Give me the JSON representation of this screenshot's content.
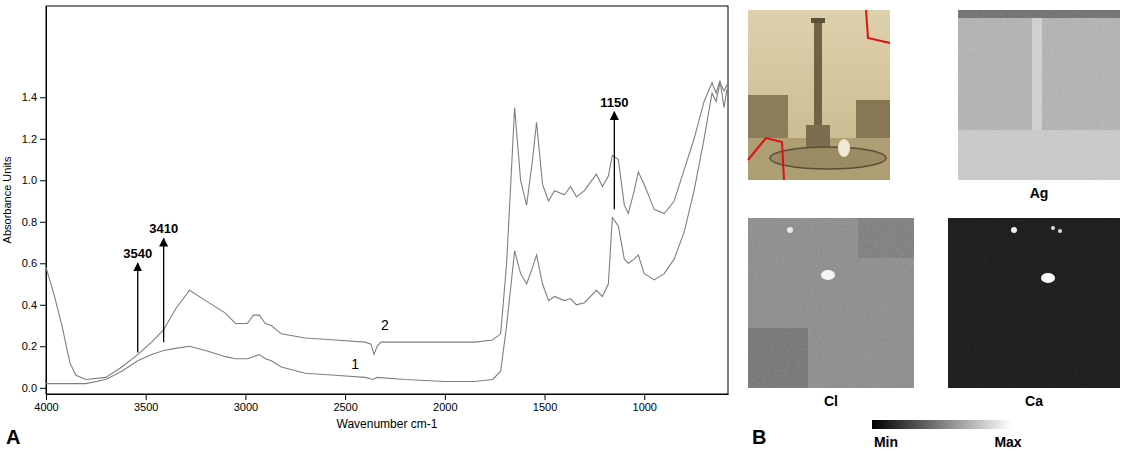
{
  "chart_data": {
    "type": "line",
    "panel": "A",
    "x_label": "Wavenumber cm-1",
    "y_label": "Absorbance Units",
    "xlim": [
      4000,
      580
    ],
    "ylim": [
      -0.03,
      1.84
    ],
    "xticks": [
      4000,
      3500,
      3000,
      2500,
      2000,
      1500,
      1000
    ],
    "yticks": [
      {
        "value": 0,
        "label": "0.0"
      },
      0.2,
      0.4,
      0.6,
      0.8,
      {
        "value": 1,
        "label": "1.0"
      },
      1.2,
      1.4
    ],
    "grid": false,
    "series": [
      {
        "name": "1",
        "color": "#7f7f7f",
        "label_x": 2450,
        "label_y": 0.09,
        "x": [
          4000,
          3900,
          3800,
          3700,
          3620,
          3540,
          3470,
          3410,
          3350,
          3280,
          3200,
          3100,
          3050,
          2990,
          2960,
          2930,
          2900,
          2870,
          2820,
          2700,
          2550,
          2400,
          2360,
          2340,
          2200,
          2000,
          1850,
          1760,
          1720,
          1690,
          1650,
          1620,
          1590,
          1560,
          1540,
          1510,
          1480,
          1450,
          1400,
          1370,
          1340,
          1300,
          1240,
          1210,
          1180,
          1160,
          1130,
          1100,
          1080,
          1050,
          1030,
          1000,
          950,
          900,
          850,
          800,
          750,
          700,
          660,
          640,
          620,
          600,
          585
        ],
        "values": [
          0.02,
          0.02,
          0.02,
          0.04,
          0.08,
          0.13,
          0.16,
          0.18,
          0.19,
          0.2,
          0.18,
          0.15,
          0.14,
          0.14,
          0.15,
          0.16,
          0.14,
          0.13,
          0.1,
          0.07,
          0.06,
          0.05,
          0.04,
          0.05,
          0.04,
          0.03,
          0.03,
          0.04,
          0.08,
          0.3,
          0.66,
          0.55,
          0.5,
          0.58,
          0.64,
          0.5,
          0.42,
          0.44,
          0.42,
          0.43,
          0.4,
          0.41,
          0.47,
          0.44,
          0.5,
          0.82,
          0.78,
          0.62,
          0.6,
          0.62,
          0.64,
          0.55,
          0.52,
          0.55,
          0.62,
          0.75,
          0.95,
          1.2,
          1.42,
          1.38,
          1.47,
          1.43,
          1.46
        ]
      },
      {
        "name": "2",
        "color": "#7f7f7f",
        "label_x": 2300,
        "label_y": 0.28,
        "x": [
          4000,
          3960,
          3920,
          3880,
          3850,
          3800,
          3700,
          3620,
          3540,
          3470,
          3410,
          3350,
          3280,
          3200,
          3100,
          3050,
          2990,
          2960,
          2930,
          2900,
          2870,
          2820,
          2700,
          2550,
          2400,
          2370,
          2355,
          2340,
          2320,
          2200,
          2000,
          1850,
          1760,
          1720,
          1690,
          1650,
          1620,
          1590,
          1560,
          1540,
          1510,
          1480,
          1450,
          1400,
          1370,
          1340,
          1300,
          1240,
          1210,
          1180,
          1160,
          1130,
          1100,
          1080,
          1050,
          1030,
          1000,
          950,
          900,
          850,
          800,
          750,
          700,
          660,
          640,
          620,
          600,
          585
        ],
        "values": [
          0.58,
          0.45,
          0.3,
          0.12,
          0.06,
          0.04,
          0.05,
          0.1,
          0.16,
          0.22,
          0.28,
          0.38,
          0.47,
          0.42,
          0.36,
          0.31,
          0.31,
          0.35,
          0.35,
          0.31,
          0.3,
          0.26,
          0.24,
          0.23,
          0.22,
          0.21,
          0.16,
          0.2,
          0.22,
          0.22,
          0.22,
          0.22,
          0.23,
          0.26,
          0.6,
          1.35,
          1.0,
          0.88,
          1.1,
          1.28,
          0.98,
          0.9,
          0.95,
          0.93,
          0.97,
          0.92,
          0.95,
          1.03,
          0.97,
          1.02,
          1.12,
          1.1,
          0.88,
          0.84,
          0.95,
          1.04,
          0.98,
          0.86,
          0.84,
          0.9,
          1.05,
          1.2,
          1.38,
          1.47,
          1.42,
          1.48,
          1.35,
          1.44
        ]
      }
    ],
    "annotations": [
      {
        "text": "3540",
        "x": 3540,
        "y_from": 0.17,
        "y_to": 0.6
      },
      {
        "text": "3410",
        "x": 3410,
        "y_from": 0.22,
        "y_to": 0.72
      },
      {
        "text": "1150",
        "x": 1150,
        "y_from": 0.86,
        "y_to": 1.33
      }
    ]
  },
  "panel_b": {
    "label": "B",
    "maps": [
      {
        "element": "Ag"
      },
      {
        "element": "Cl"
      },
      {
        "element": "Ca"
      }
    ],
    "color_scale": {
      "min_label": "Min",
      "max_label": "Max"
    }
  }
}
